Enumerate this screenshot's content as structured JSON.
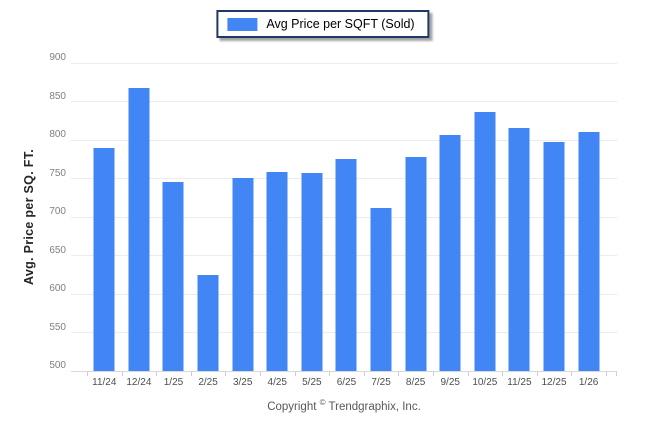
{
  "legend": {
    "label": "Avg Price per SQFT (Sold)"
  },
  "footer": {
    "copyright_prefix": "Copyright",
    "copyright_symbol": "©",
    "copyright_suffix": " Trendgraphix, Inc."
  },
  "chart_data": {
    "type": "bar",
    "title": "Avg Price per SQFT (Sold)",
    "categories": [
      "11/24",
      "12/24",
      "1/25",
      "2/25",
      "3/25",
      "4/25",
      "5/25",
      "6/25",
      "7/25",
      "8/25",
      "9/25",
      "10/25",
      "11/25",
      "12/25",
      "1/26"
    ],
    "values": [
      789,
      868,
      745,
      625,
      751,
      758,
      757,
      775,
      712,
      778,
      807,
      837,
      816,
      798,
      810
    ],
    "xlabel": "",
    "ylabel": "Avg. Price per SQ. FT.",
    "ylim": [
      500,
      900
    ],
    "ytick_step": 50,
    "grid": "horizontal",
    "legend_position": "top-center",
    "bar_color": "#4285f4",
    "gridline_color": "#ececec",
    "baseline_color": "#d9d9d9",
    "tick_color": "#cfcfcf",
    "legend_border_color": "#203864"
  }
}
